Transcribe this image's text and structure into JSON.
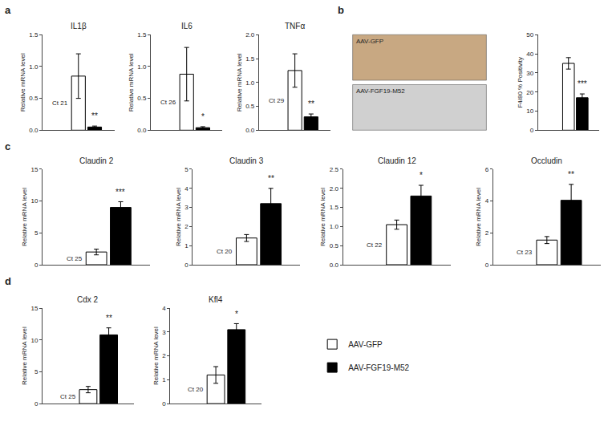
{
  "chart_data": [
    {
      "type": "bar",
      "title": "IL1β",
      "categories": [
        null
      ],
      "series": [
        {
          "name": "AAV-GFP",
          "color": "white",
          "values": [
            0.85
          ],
          "errors": [
            0.35
          ]
        },
        {
          "name": "AAV-FGF19-M52",
          "color": "black",
          "values": [
            0.05
          ],
          "errors": [
            0.015
          ]
        }
      ],
      "ylabel": "Relative mRNA level",
      "ylim": [
        0,
        1.5
      ],
      "yticks": [
        {
          "value": 0,
          "label": "0.0"
        },
        0.5,
        {
          "value": 1,
          "label": "1.0"
        },
        1.5
      ],
      "annotations": [
        {
          "text": "Ct 21",
          "series": "AAV-GFP"
        },
        {
          "text": "**",
          "series": "AAV-FGF19-M52"
        }
      ],
      "grid": false,
      "tick_labels": "y"
    },
    {
      "type": "bar",
      "title": "IL6",
      "categories": [
        null
      ],
      "series": [
        {
          "name": "AAV-GFP",
          "color": "white",
          "values": [
            0.88
          ],
          "errors": [
            0.42
          ]
        },
        {
          "name": "AAV-FGF19-M52",
          "color": "black",
          "values": [
            0.04
          ],
          "errors": [
            0.015
          ]
        }
      ],
      "ylabel": "Relative mRNA level",
      "ylim": [
        0,
        1.5
      ],
      "yticks": [
        {
          "value": 0,
          "label": "0.0"
        },
        0.5,
        {
          "value": 1,
          "label": "1.0"
        },
        1.5
      ],
      "annotations": [
        {
          "text": "Ct 26",
          "series": "AAV-GFP"
        },
        {
          "text": "*",
          "series": "AAV-FGF19-M52"
        }
      ],
      "grid": false,
      "tick_labels": "y"
    },
    {
      "type": "bar",
      "title": "TNFα",
      "categories": [
        null
      ],
      "series": [
        {
          "name": "AAV-GFP",
          "color": "white",
          "values": [
            1.25
          ],
          "errors": [
            0.35
          ]
        },
        {
          "name": "AAV-FGF19-M52",
          "color": "black",
          "values": [
            0.28
          ],
          "errors": [
            0.06
          ]
        }
      ],
      "ylabel": "Relative mRNA level",
      "ylim": [
        0,
        2.0
      ],
      "yticks": [
        {
          "value": 0,
          "label": "0.0"
        },
        0.5,
        {
          "value": 1,
          "label": "1.0"
        },
        1.5,
        {
          "value": 2,
          "label": "2.0"
        }
      ],
      "annotations": [
        {
          "text": "Ct 29",
          "series": "AAV-GFP"
        },
        {
          "text": "**",
          "series": "AAV-FGF19-M52"
        }
      ],
      "grid": false,
      "tick_labels": "y"
    },
    {
      "type": "bar",
      "title": "Claudin 2",
      "categories": [
        null
      ],
      "series": [
        {
          "name": "AAV-GFP",
          "color": "white",
          "values": [
            2.0
          ],
          "errors": [
            0.45
          ]
        },
        {
          "name": "AAV-FGF19-M52",
          "color": "black",
          "values": [
            9.0
          ],
          "errors": [
            0.9
          ]
        }
      ],
      "ylabel": "Relative mRNA level",
      "ylim": [
        0,
        15
      ],
      "yticks": [
        0,
        5,
        10,
        15
      ],
      "annotations": [
        {
          "text": "Ct 25",
          "series": "AAV-GFP"
        },
        {
          "text": "***",
          "series": "AAV-FGF19-M52"
        }
      ],
      "grid": false,
      "tick_labels": "y"
    },
    {
      "type": "bar",
      "title": "Claudin 3",
      "categories": [
        null
      ],
      "series": [
        {
          "name": "AAV-GFP",
          "color": "white",
          "values": [
            1.4
          ],
          "errors": [
            0.18
          ]
        },
        {
          "name": "AAV-FGF19-M52",
          "color": "black",
          "values": [
            3.2
          ],
          "errors": [
            0.8
          ]
        }
      ],
      "ylabel": "Relative mRNA level",
      "ylim": [
        0,
        5
      ],
      "yticks": [
        0,
        1,
        2,
        3,
        4,
        5
      ],
      "annotations": [
        {
          "text": "Ct 20",
          "series": "AAV-GFP"
        },
        {
          "text": "**",
          "series": "AAV-FGF19-M52"
        }
      ],
      "grid": false,
      "tick_labels": "y"
    },
    {
      "type": "bar",
      "title": "Claudin 12",
      "categories": [
        null
      ],
      "series": [
        {
          "name": "AAV-GFP",
          "color": "white",
          "values": [
            1.05
          ],
          "errors": [
            0.12
          ]
        },
        {
          "name": "AAV-FGF19-M52",
          "color": "black",
          "values": [
            1.8
          ],
          "errors": [
            0.28
          ]
        }
      ],
      "ylabel": "Relative mRNA level",
      "ylim": [
        0,
        2.5
      ],
      "yticks": [
        {
          "value": 0,
          "label": "0.0"
        },
        0.5,
        {
          "value": 1,
          "label": "1.0"
        },
        1.5,
        {
          "value": 2,
          "label": "2.0"
        },
        2.5
      ],
      "annotations": [
        {
          "text": "Ct 22",
          "series": "AAV-GFP"
        },
        {
          "text": "*",
          "series": "AAV-FGF19-M52"
        }
      ],
      "grid": false,
      "tick_labels": "y"
    },
    {
      "type": "bar",
      "title": "Occludin",
      "categories": [
        null
      ],
      "series": [
        {
          "name": "AAV-GFP",
          "color": "white",
          "values": [
            1.55
          ],
          "errors": [
            0.22
          ]
        },
        {
          "name": "AAV-FGF19-M52",
          "color": "black",
          "values": [
            4.05
          ],
          "errors": [
            1.0
          ]
        }
      ],
      "ylabel": "Relative mRNA level",
      "ylim": [
        0,
        6
      ],
      "yticks": [
        0,
        2,
        4,
        6
      ],
      "annotations": [
        {
          "text": "Ct 23",
          "series": "AAV-GFP"
        },
        {
          "text": "**",
          "series": "AAV-FGF19-M52"
        }
      ],
      "grid": false,
      "tick_labels": "y"
    },
    {
      "type": "bar",
      "title": "Cdx 2",
      "categories": [
        null
      ],
      "series": [
        {
          "name": "AAV-GFP",
          "color": "white",
          "values": [
            2.2
          ],
          "errors": [
            0.5
          ]
        },
        {
          "name": "AAV-FGF19-M52",
          "color": "black",
          "values": [
            10.8
          ],
          "errors": [
            1.1
          ]
        }
      ],
      "ylabel": "Relative mRNA level",
      "ylim": [
        0,
        15
      ],
      "yticks": [
        0,
        5,
        10,
        15
      ],
      "annotations": [
        {
          "text": "Ct 25",
          "series": "AAV-GFP"
        },
        {
          "text": "**",
          "series": "AAV-FGF19-M52"
        }
      ],
      "grid": false,
      "tick_labels": "y"
    },
    {
      "type": "bar",
      "title": "Kfl4",
      "categories": [
        null
      ],
      "series": [
        {
          "name": "AAV-GFP",
          "color": "white",
          "values": [
            1.2
          ],
          "errors": [
            0.35
          ]
        },
        {
          "name": "AAV-FGF19-M52",
          "color": "black",
          "values": [
            3.1
          ],
          "errors": [
            0.25
          ]
        }
      ],
      "ylabel": "Relative mRNA level",
      "ylim": [
        0,
        4
      ],
      "yticks": [
        0,
        1,
        2,
        3,
        4
      ],
      "annotations": [
        {
          "text": "Ct 20",
          "series": "AAV-GFP"
        },
        {
          "text": "*",
          "series": "AAV-FGF19-M52"
        }
      ],
      "grid": false,
      "tick_labels": "y"
    },
    {
      "type": "bar",
      "categories": [
        null
      ],
      "series": [
        {
          "name": "AAV-GFP",
          "color": "white",
          "values": [
            35
          ],
          "errors": [
            3
          ]
        },
        {
          "name": "AAV-FGF19-M52",
          "color": "black",
          "values": [
            17
          ],
          "errors": [
            2
          ]
        }
      ],
      "ylabel": "F4/80 % Positivity",
      "ylim": [
        0,
        50
      ],
      "yticks": [
        0,
        10,
        20,
        30,
        40,
        50
      ],
      "annotations": [
        {
          "text": "***",
          "series": "AAV-FGF19-M52"
        }
      ],
      "grid": false,
      "tick_labels": "y"
    }
  ],
  "panel_labels": [
    "a",
    "b",
    "c",
    "d"
  ],
  "images": [
    {
      "label": "AAV-GFP",
      "color": "#c8a882"
    },
    {
      "label": "AAV-FGF19-M52",
      "color": "#d0d0d0"
    }
  ],
  "edge_color": "black"
}
